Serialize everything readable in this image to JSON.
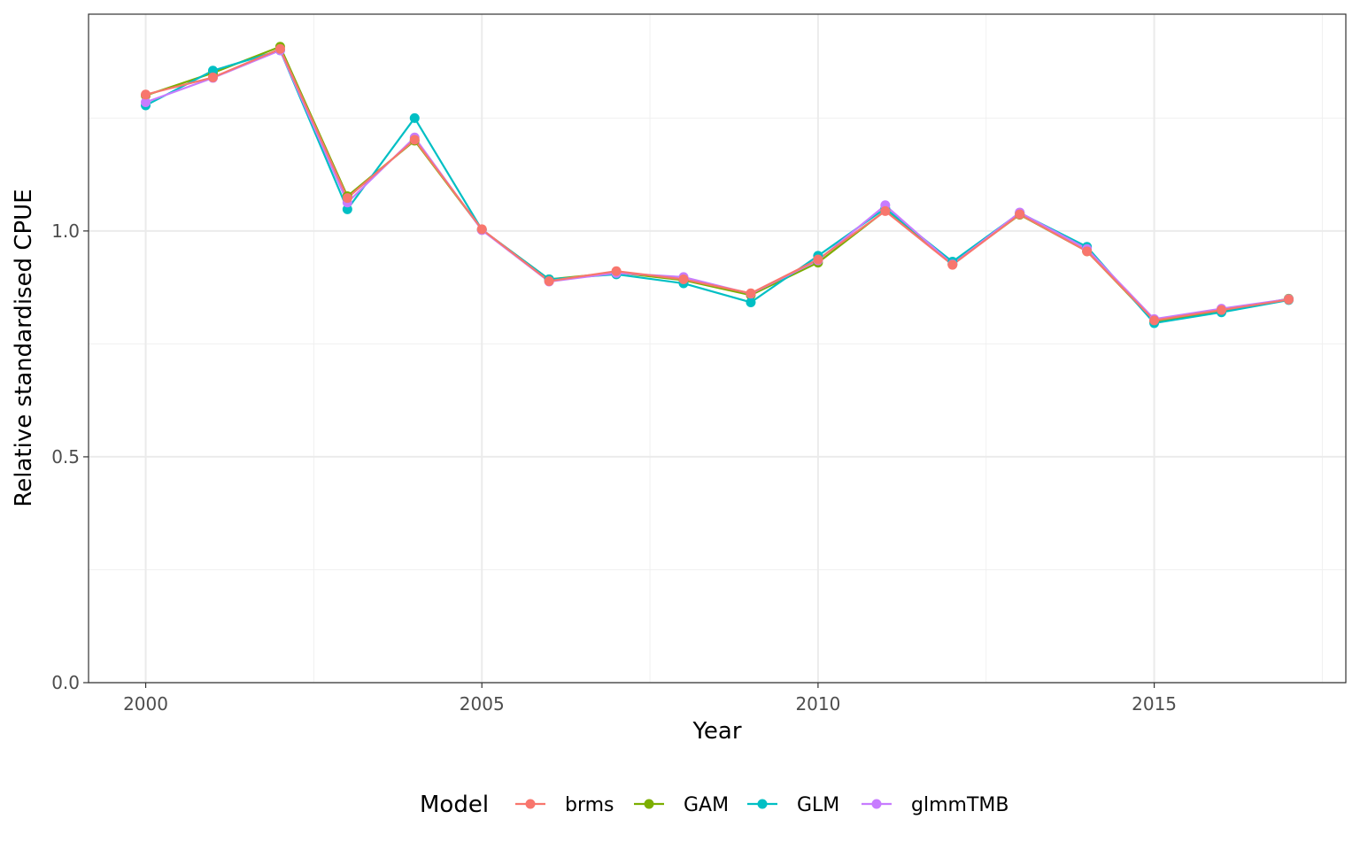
{
  "chart_data": {
    "type": "line",
    "title": "",
    "xlabel": "Year",
    "ylabel": "Relative standardised CPUE",
    "xlim": [
      1999.15,
      2017.85
    ],
    "ylim": [
      0,
      1.48
    ],
    "x_ticks": [
      2000,
      2005,
      2010,
      2015
    ],
    "x_tick_labels": [
      "2000",
      "2005",
      "2010",
      "2015"
    ],
    "x_minor_ticks": [
      2002.5,
      2007.5,
      2012.5,
      2017.5
    ],
    "y_ticks": [
      0,
      0.5,
      1.0
    ],
    "y_tick_labels": [
      "0.0",
      "0.5",
      "1.0"
    ],
    "y_minor_ticks": [
      0.25,
      0.75,
      1.25
    ],
    "grid": true,
    "legend": {
      "title": "Model",
      "position": "bottom"
    },
    "x": [
      2000,
      2001,
      2002,
      2003,
      2004,
      2005,
      2006,
      2007,
      2008,
      2009,
      2010,
      2011,
      2012,
      2013,
      2014,
      2015,
      2016,
      2017
    ],
    "series": [
      {
        "name": "GAM",
        "color": "#7CAE00",
        "values": [
          1.3,
          1.35,
          1.408,
          1.077,
          1.2,
          1.003,
          0.893,
          0.908,
          0.891,
          0.858,
          0.93,
          1.045,
          0.927,
          1.036,
          0.955,
          0.8,
          0.822,
          0.85
        ]
      },
      {
        "name": "GLM",
        "color": "#00BFC4",
        "values": [
          1.278,
          1.355,
          1.4,
          1.048,
          1.25,
          1.003,
          0.893,
          0.904,
          0.884,
          0.842,
          0.945,
          1.05,
          0.932,
          1.04,
          0.965,
          0.796,
          0.82,
          0.847
        ]
      },
      {
        "name": "glmmTMB",
        "color": "#C77CFF",
        "values": [
          1.285,
          1.339,
          1.4,
          1.063,
          1.207,
          1.002,
          0.888,
          0.907,
          0.898,
          0.861,
          0.935,
          1.057,
          0.926,
          1.041,
          0.96,
          0.805,
          0.828,
          0.849
        ]
      },
      {
        "name": "brms",
        "color": "#F8766D",
        "values": [
          1.302,
          1.34,
          1.403,
          1.073,
          1.202,
          1.004,
          0.889,
          0.911,
          0.893,
          0.862,
          0.937,
          1.044,
          0.925,
          1.037,
          0.955,
          0.802,
          0.825,
          0.848
        ]
      }
    ],
    "legend_order": [
      "brms",
      "GAM",
      "GLM",
      "glmmTMB"
    ]
  }
}
